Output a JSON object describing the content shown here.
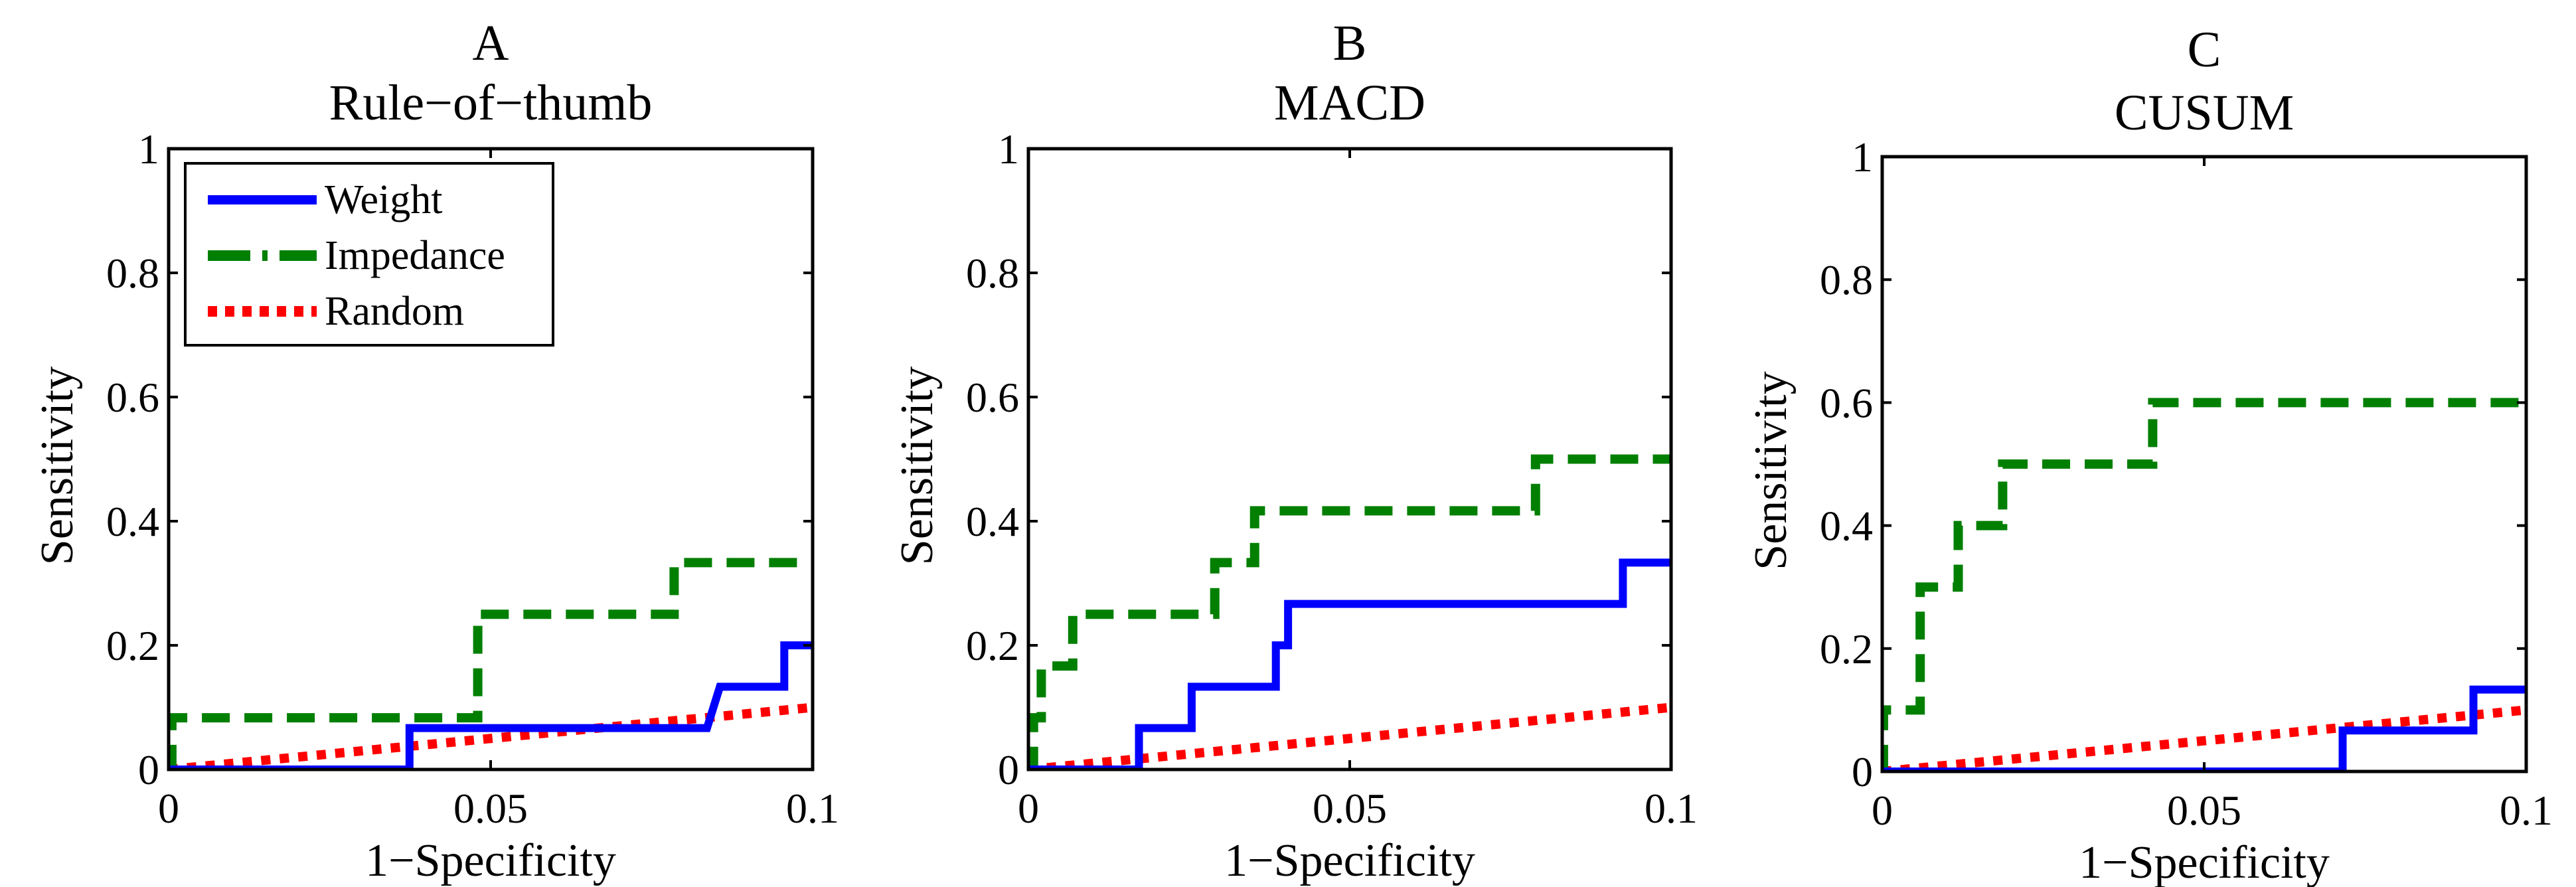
{
  "chart_data": [
    {
      "type": "line",
      "panel": "A",
      "title": "Rule−of−thumb",
      "xlabel": "1−Specificity",
      "ylabel": "Sensitivity",
      "xlim": [
        0,
        0.1
      ],
      "ylim": [
        0,
        1
      ],
      "xticks": [
        0,
        0.05,
        0.1
      ],
      "xtick_labels": [
        "0",
        "0.05",
        "0.1"
      ],
      "yticks": [
        0,
        0.2,
        0.4,
        0.6,
        0.8,
        1
      ],
      "ytick_labels": [
        "0",
        "0.2",
        "0.4",
        "0.6",
        "0.8",
        "1"
      ],
      "grid": false,
      "legend": {
        "placement": "top-left",
        "entries": [
          "Weight",
          "Impedance",
          "Random"
        ]
      },
      "series": [
        {
          "name": "Weight",
          "style": "solid",
          "color": "#0000ff",
          "x": [
            0,
            0.0374,
            0.0374,
            0.0836,
            0.0856,
            0.0956,
            0.0956,
            0.1
          ],
          "y": [
            0,
            0,
            0.0667,
            0.0667,
            0.1333,
            0.1333,
            0.2,
            0.2
          ]
        },
        {
          "name": "Impedance",
          "style": "dashed",
          "color": "#007f00",
          "x": [
            0,
            0.0005,
            0.0005,
            0.048,
            0.048,
            0.0785,
            0.0785,
            0.1
          ],
          "y": [
            0,
            0,
            0.0833,
            0.0833,
            0.25,
            0.25,
            0.3333,
            0.3333
          ]
        },
        {
          "name": "Random",
          "style": "dotted",
          "color": "#ff0000",
          "x": [
            0,
            0.1
          ],
          "y": [
            0,
            0.1
          ]
        }
      ]
    },
    {
      "type": "line",
      "panel": "B",
      "title": "MACD",
      "xlabel": "1−Specificity",
      "ylabel": "Sensitivity",
      "xlim": [
        0,
        0.1
      ],
      "ylim": [
        0,
        1
      ],
      "xticks": [
        0,
        0.05,
        0.1
      ],
      "xtick_labels": [
        "0",
        "0.05",
        "0.1"
      ],
      "yticks": [
        0,
        0.2,
        0.4,
        0.6,
        0.8,
        1
      ],
      "ytick_labels": [
        "0",
        "0.2",
        "0.4",
        "0.6",
        "0.8",
        "1"
      ],
      "grid": false,
      "series": [
        {
          "name": "Weight",
          "style": "solid",
          "color": "#0000ff",
          "x": [
            0,
            0.0172,
            0.0172,
            0.0254,
            0.0254,
            0.0385,
            0.0385,
            0.0404,
            0.0404,
            0.0925,
            0.0925,
            0.1
          ],
          "y": [
            0,
            0,
            0.0667,
            0.0667,
            0.1333,
            0.1333,
            0.2,
            0.2,
            0.2667,
            0.2667,
            0.3333,
            0.3333
          ]
        },
        {
          "name": "Impedance",
          "style": "dashed",
          "color": "#007f00",
          "x": [
            0,
            0.0008,
            0.0008,
            0.002,
            0.002,
            0.0069,
            0.0069,
            0.029,
            0.029,
            0.0352,
            0.0352,
            0.0789,
            0.0789,
            0.1
          ],
          "y": [
            0,
            0,
            0.0833,
            0.0833,
            0.1667,
            0.1667,
            0.25,
            0.25,
            0.3333,
            0.3333,
            0.4167,
            0.4167,
            0.5,
            0.5
          ]
        },
        {
          "name": "Random",
          "style": "dotted",
          "color": "#ff0000",
          "x": [
            0,
            0.1
          ],
          "y": [
            0,
            0.1
          ]
        }
      ]
    },
    {
      "type": "line",
      "panel": "C",
      "title": "CUSUM",
      "xlabel": "1−Specificity",
      "ylabel": "Sensitivity",
      "xlim": [
        0,
        0.1
      ],
      "ylim": [
        0,
        1
      ],
      "xticks": [
        0,
        0.05,
        0.1
      ],
      "xtick_labels": [
        "0",
        "0.05",
        "0.1"
      ],
      "yticks": [
        0,
        0.2,
        0.4,
        0.6,
        0.8,
        1
      ],
      "ytick_labels": [
        "0",
        "0.2",
        "0.4",
        "0.6",
        "0.8",
        "1"
      ],
      "grid": false,
      "series": [
        {
          "name": "Weight",
          "style": "solid",
          "color": "#0000ff",
          "x": [
            0,
            0.0715,
            0.0715,
            0.0918,
            0.0918,
            0.1
          ],
          "y": [
            0,
            0,
            0.0667,
            0.0667,
            0.1333,
            0.1333
          ]
        },
        {
          "name": "Impedance",
          "style": "dashed",
          "color": "#007f00",
          "x": [
            0,
            0.0002,
            0.0002,
            0.0059,
            0.0059,
            0.0118,
            0.0118,
            0.0187,
            0.0187,
            0.042,
            0.042,
            0.1
          ],
          "y": [
            0,
            0,
            0.1,
            0.1,
            0.3,
            0.3,
            0.4,
            0.4,
            0.5,
            0.5,
            0.6,
            0.6
          ]
        },
        {
          "name": "Random",
          "style": "dotted",
          "color": "#ff0000",
          "x": [
            0,
            0.1
          ],
          "y": [
            0,
            0.1
          ]
        }
      ]
    }
  ]
}
